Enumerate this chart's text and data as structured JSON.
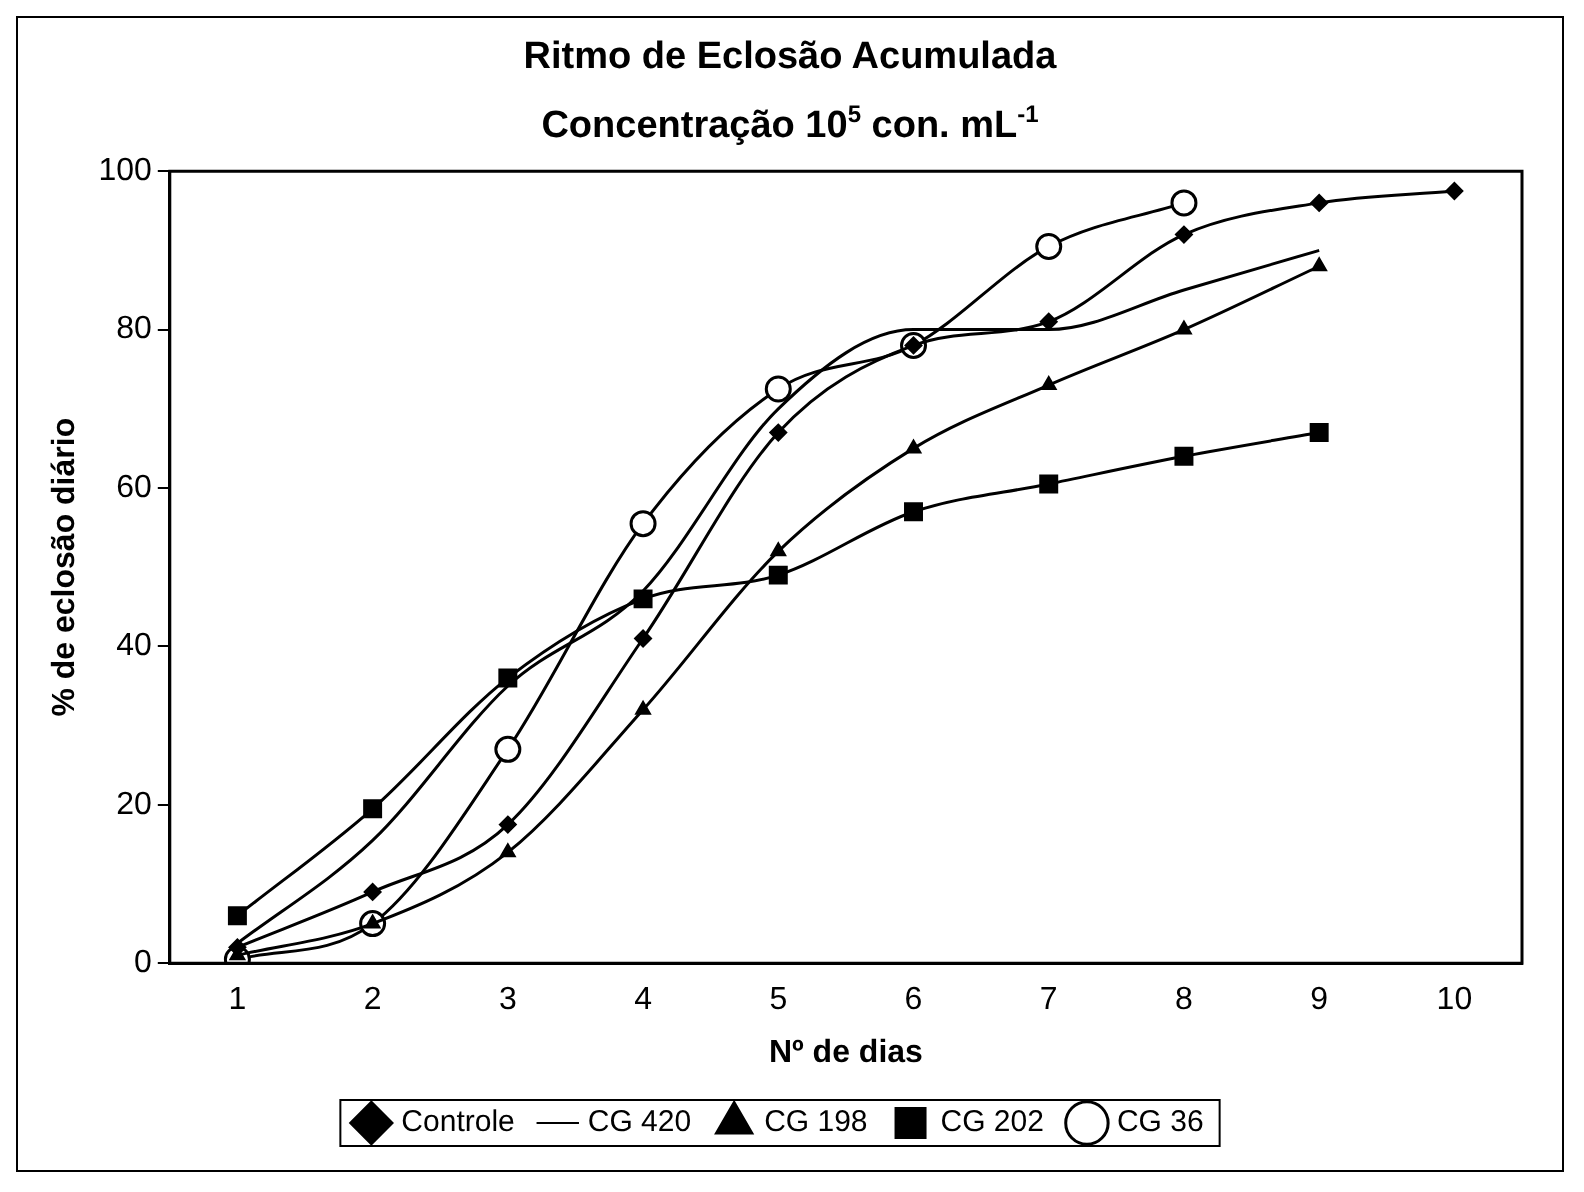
{
  "chart_data": {
    "type": "line",
    "title": "Ritmo de Eclosão Acumulada",
    "subtitle": "Concentração 10$^{5}$ con. mL$^{-1}$",
    "xlabel": "Nº de dias",
    "ylabel": "% de eclosão diário",
    "categories": [
      "1",
      "2",
      "3",
      "4",
      "5",
      "6",
      "7",
      "8",
      "9",
      "10"
    ],
    "ylim": [
      0,
      100
    ],
    "yticks": [
      0,
      20,
      40,
      60,
      80,
      100
    ],
    "grid": false,
    "legend": "bottom",
    "line_style": "solid",
    "series": [
      {
        "name": "Controle",
        "color": "#000000",
        "marker": "diamond",
        "values": [
          2,
          9,
          17.5,
          41,
          67,
          78,
          81,
          92,
          96,
          97.5
        ]
      },
      {
        "name": "CG 420",
        "color": "#000000",
        "marker": "none",
        "values": [
          2.5,
          15.5,
          35,
          47,
          70,
          80,
          80,
          85,
          90,
          null
        ]
      },
      {
        "name": "CG 198",
        "color": "#000000",
        "marker": "triangle",
        "values": [
          1,
          5,
          14,
          32,
          52,
          65,
          73,
          80,
          88,
          null
        ]
      },
      {
        "name": "CG 202",
        "color": "#000000",
        "marker": "square",
        "values": [
          6,
          19.5,
          36,
          46,
          49,
          57,
          60.5,
          64,
          67,
          null
        ]
      },
      {
        "name": "CG 36",
        "color": "#000000",
        "marker": "circle",
        "values": [
          0.5,
          5,
          27,
          55.5,
          72.5,
          78,
          90.5,
          96,
          null,
          null
        ]
      }
    ]
  }
}
